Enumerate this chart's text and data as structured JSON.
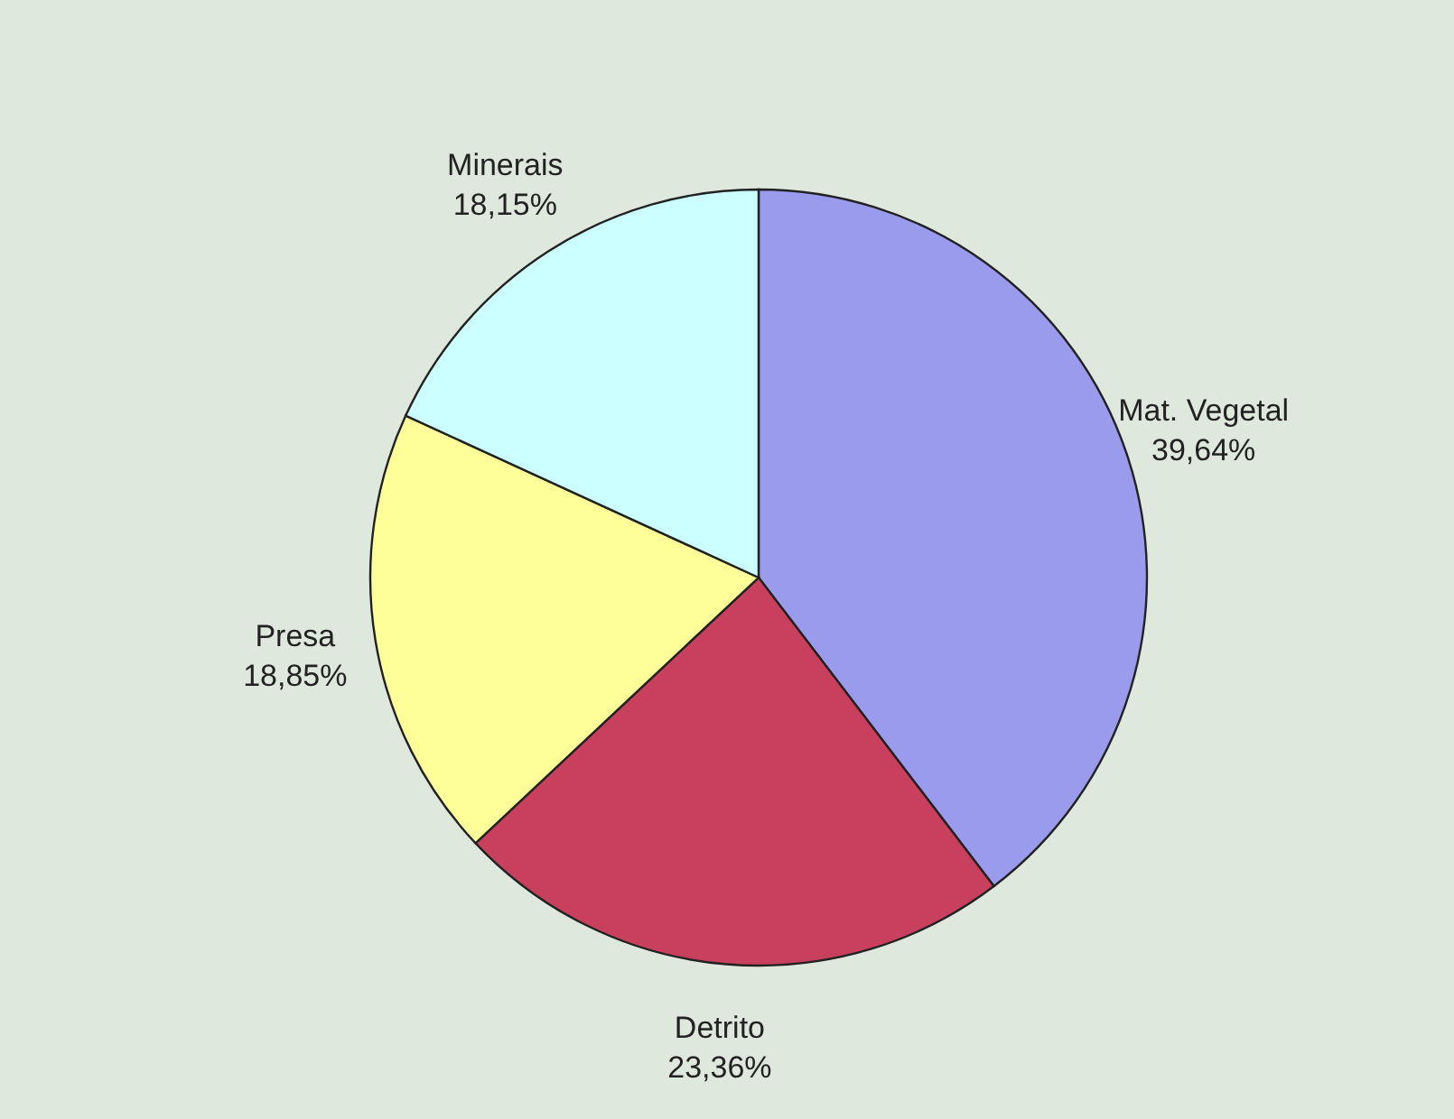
{
  "chart_data": {
    "type": "pie",
    "categories": [
      "Mat. Vegetal",
      "Detrito",
      "Presa",
      "Minerais"
    ],
    "values": [
      39.64,
      23.36,
      18.85,
      18.15
    ],
    "value_labels": [
      "39,64%",
      "23,36%",
      "18,85%",
      "18,15%"
    ],
    "colors": [
      "#9b9bee",
      "#c8405e",
      "#ffff99",
      "#ccffff"
    ]
  }
}
